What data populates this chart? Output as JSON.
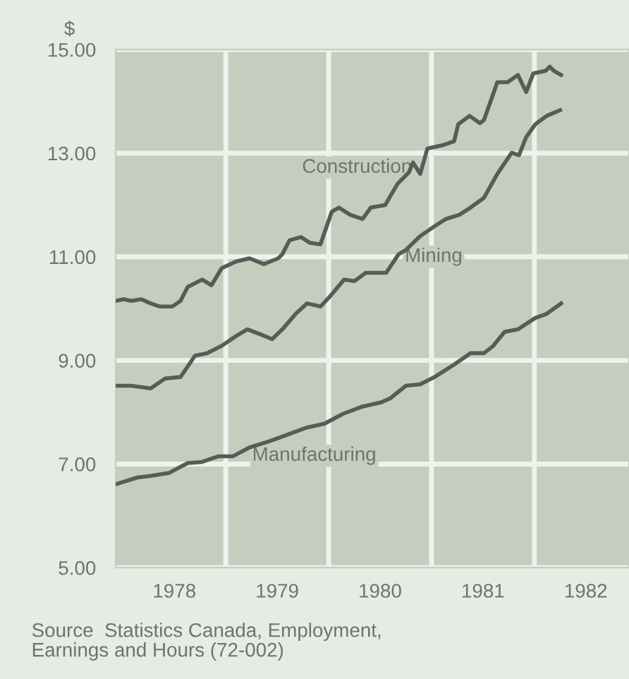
{
  "chart_data": {
    "type": "line",
    "ylabel": "$",
    "xlim": [
      1977.93,
      1982.92
    ],
    "xticks": [
      {
        "value": 1978.5,
        "label": "1978"
      },
      {
        "value": 1979,
        "label": null
      },
      {
        "value": 1979.5,
        "label": "1979"
      },
      {
        "value": 1980,
        "label": null
      },
      {
        "value": 1980.5,
        "label": "1980"
      },
      {
        "value": 1981,
        "label": null
      },
      {
        "value": 1981.5,
        "label": "1981"
      },
      {
        "value": 1982,
        "label": null
      },
      {
        "value": 1982.5,
        "label": "1982"
      }
    ],
    "ylim": [
      5,
      15
    ],
    "yticks": [
      {
        "value": 5,
        "label": "5.00"
      },
      {
        "value": 7,
        "label": "7.00"
      },
      {
        "value": 9,
        "label": "9.00"
      },
      {
        "value": 11,
        "label": "11.00"
      },
      {
        "value": 13,
        "label": "13.00"
      },
      {
        "value": 15,
        "label": "15.00"
      }
    ],
    "grid": true,
    "legend": false,
    "marker": "none",
    "line_style": "solid",
    "annotations": [
      "Source  Statistics Canada, Employment,\nEarnings and Hours (72-002)"
    ],
    "series": [
      {
        "name": "Construction",
        "color": "#575c57",
        "x": [
          1977.93,
          1978.01,
          1978.08,
          1978.18,
          1978.27,
          1978.36,
          1978.48,
          1978.56,
          1978.63,
          1978.77,
          1978.86,
          1978.96,
          1979.1,
          1979.23,
          1979.37,
          1979.51,
          1979.55,
          1979.62,
          1979.73,
          1979.82,
          1979.92,
          1980.03,
          1980.1,
          1980.21,
          1980.33,
          1980.41,
          1980.55,
          1980.67,
          1980.78,
          1980.82,
          1980.89,
          1980.96,
          1981.1,
          1981.22,
          1981.26,
          1981.37,
          1981.47,
          1981.51,
          1981.64,
          1981.74,
          1981.84,
          1981.92,
          1981.99,
          1982.11,
          1982.15,
          1982.19,
          1982.26
        ],
        "values": [
          10.15,
          10.18,
          10.15,
          10.18,
          10.1,
          10.04,
          10.04,
          10.15,
          10.42,
          10.56,
          10.45,
          10.78,
          10.91,
          10.97,
          10.86,
          10.97,
          11.05,
          11.32,
          11.38,
          11.27,
          11.24,
          11.87,
          11.95,
          11.81,
          11.73,
          11.95,
          12.0,
          12.41,
          12.63,
          12.82,
          12.6,
          13.09,
          13.15,
          13.23,
          13.56,
          13.72,
          13.58,
          13.64,
          14.37,
          14.37,
          14.51,
          14.18,
          14.54,
          14.59,
          14.67,
          14.59,
          14.51
        ]
      },
      {
        "name": "Mining",
        "color": "#575c57",
        "x": [
          1977.93,
          1978.08,
          1978.27,
          1978.41,
          1978.56,
          1978.7,
          1978.82,
          1978.96,
          1979.1,
          1979.21,
          1979.34,
          1979.45,
          1979.55,
          1979.68,
          1979.79,
          1979.92,
          1980.01,
          1980.15,
          1980.25,
          1980.36,
          1980.56,
          1980.68,
          1980.75,
          1980.89,
          1981.03,
          1981.14,
          1981.27,
          1981.38,
          1981.51,
          1981.64,
          1981.78,
          1981.85,
          1981.92,
          1982.01,
          1982.12,
          1982.25
        ],
        "values": [
          8.51,
          8.51,
          8.46,
          8.65,
          8.68,
          9.09,
          9.14,
          9.28,
          9.47,
          9.6,
          9.5,
          9.41,
          9.6,
          9.9,
          10.1,
          10.04,
          10.23,
          10.56,
          10.53,
          10.69,
          10.69,
          11.05,
          11.13,
          11.4,
          11.59,
          11.73,
          11.81,
          11.95,
          12.14,
          12.6,
          13.01,
          12.96,
          13.31,
          13.56,
          13.72,
          13.83
        ]
      },
      {
        "name": "Manufacturing",
        "color": "#575c57",
        "x": [
          1977.93,
          1978.14,
          1978.27,
          1978.45,
          1978.63,
          1978.77,
          1978.93,
          1979.07,
          1979.23,
          1979.41,
          1979.59,
          1979.78,
          1979.96,
          1980.14,
          1980.33,
          1980.51,
          1980.6,
          1980.75,
          1980.89,
          1981.03,
          1981.22,
          1981.38,
          1981.51,
          1981.6,
          1981.71,
          1981.84,
          1982.01,
          1982.12,
          1982.26
        ],
        "values": [
          6.61,
          6.74,
          6.77,
          6.83,
          7.02,
          7.04,
          7.15,
          7.15,
          7.32,
          7.43,
          7.56,
          7.7,
          7.78,
          7.97,
          8.11,
          8.19,
          8.27,
          8.51,
          8.54,
          8.68,
          8.92,
          9.14,
          9.14,
          9.28,
          9.55,
          9.6,
          9.82,
          9.9,
          10.1
        ]
      }
    ]
  }
}
